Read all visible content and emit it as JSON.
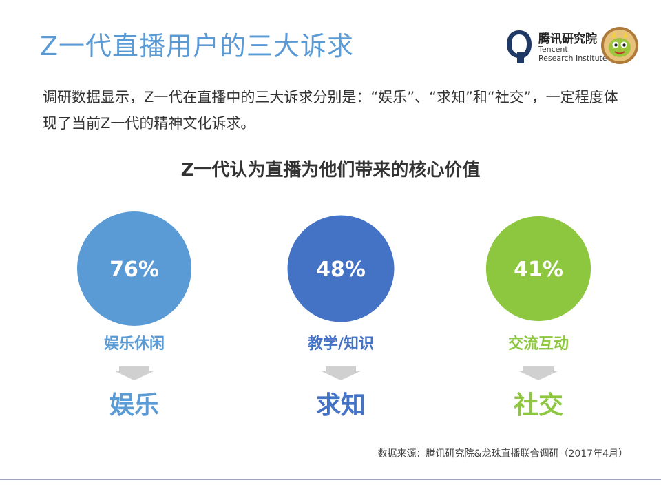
{
  "title": "Z一代直播用户的三大诉求",
  "logo": {
    "name_cn": "腾讯研究院",
    "name_en_line1": "Tencent",
    "name_en_line2": "Research Institute",
    "mark_icon": "tencent-research-q-icon",
    "mascot_icon": "dragon-mascot-icon"
  },
  "intro_text": "调研数据显示，Z一代在直播中的三大诉求分别是：“娱乐”、“求知”和“社交”，一定程度体现了当前Z一代的精神文化诉求。",
  "chart_data": {
    "type": "bubble",
    "title": "Z一代认为直播为他们带来的核心价值",
    "unit": "%",
    "items": [
      {
        "value": 76,
        "value_label": "76%",
        "category": "娱乐休闲",
        "demand": "娱乐",
        "color": "#5b9bd5"
      },
      {
        "value": 48,
        "value_label": "48%",
        "category": "教学/知识",
        "demand": "求知",
        "color": "#4472c4"
      },
      {
        "value": 41,
        "value_label": "41%",
        "category": "交流互动",
        "demand": "社交",
        "color": "#8dc63f"
      }
    ]
  },
  "colors": {
    "title": "#5b9bd5",
    "arrow": "#d0d0d0",
    "footer_line": "#9da5c7"
  },
  "source": "数据来源：腾讯研究院&龙珠直播联合调研（2017年4月）"
}
